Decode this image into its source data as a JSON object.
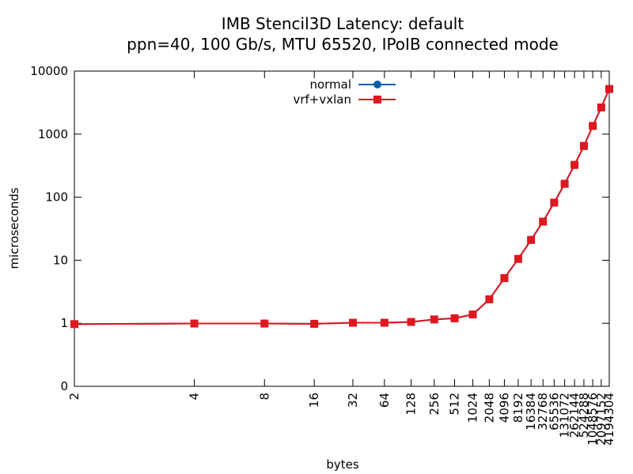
{
  "chart_data": {
    "type": "line",
    "title": "IMB Stencil3D Latency: default",
    "subtitle": "ppn=40, 100 Gb/s, MTU 65520, IPoIB connected mode",
    "x_label": "bytes",
    "y_label": "microseconds",
    "x": [
      2,
      4,
      8,
      16,
      32,
      64,
      128,
      256,
      512,
      1024,
      2048,
      4096,
      8192,
      16384,
      32768,
      65536,
      131072,
      262144,
      524288,
      1048576,
      2097152,
      4194304
    ],
    "xscale": "log-log2",
    "yscale": "log",
    "xlim": [
      2,
      4194304
    ],
    "xticks": [
      2,
      4,
      8,
      16,
      32,
      64,
      128,
      256,
      512,
      1024,
      2048,
      4096,
      8192,
      16384,
      32768,
      65536,
      131072,
      262144,
      524288,
      1048576,
      2097152,
      4194304
    ],
    "ylim": [
      0.1,
      10000
    ],
    "yticks": [
      {
        "value": 0.1,
        "label": "0"
      },
      1,
      10,
      100,
      1000,
      10000
    ],
    "legend": "top-center",
    "series": [
      {
        "name": "normal",
        "color": "#0060ad",
        "marker": "circle",
        "values": [
          0.97,
          0.99,
          0.99,
          0.98,
          1.02,
          1.02,
          1.05,
          1.15,
          1.2,
          1.38,
          2.4,
          5.2,
          10.5,
          21,
          41,
          82,
          163,
          325,
          650,
          1350,
          2650,
          5200
        ]
      },
      {
        "name": "vrf+vxlan",
        "color": "#dd181f",
        "marker": "square",
        "values": [
          0.97,
          0.99,
          0.99,
          0.98,
          1.02,
          1.02,
          1.05,
          1.15,
          1.2,
          1.38,
          2.4,
          5.2,
          10.5,
          21,
          41,
          82,
          163,
          325,
          650,
          1350,
          2650,
          5200
        ]
      }
    ]
  }
}
